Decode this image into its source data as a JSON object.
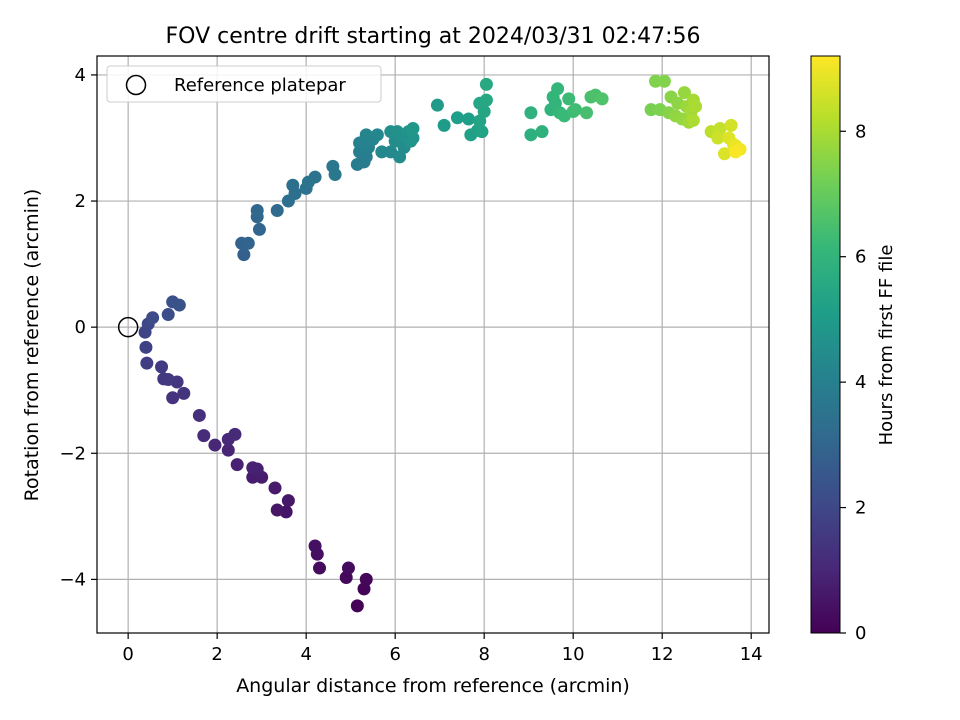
{
  "chart_data": {
    "type": "scatter",
    "title": "FOV centre drift starting at 2024/03/31 02:47:56",
    "xlabel": "Angular distance from reference (arcmin)",
    "ylabel": "Rotation from reference (arcmin)",
    "xlim": [
      -0.7,
      14.4
    ],
    "ylim": [
      -4.85,
      4.3
    ],
    "xticks": [
      0,
      2,
      4,
      6,
      8,
      10,
      12,
      14
    ],
    "yticks": [
      -4,
      -2,
      0,
      2,
      4
    ],
    "xtick_labels": [
      "0",
      "2",
      "4",
      "6",
      "8",
      "10",
      "12",
      "14"
    ],
    "ytick_labels": [
      "−4",
      "−2",
      "0",
      "2",
      "4"
    ],
    "grid": true,
    "legend": {
      "placement": "top-left",
      "entries": [
        "Reference platepar"
      ]
    },
    "reference_point": {
      "name": "Reference platepar",
      "x": 0,
      "y": 0,
      "marker": "open-circle"
    },
    "colorbar": {
      "label": "Hours from first FF file",
      "colormap": "viridis",
      "range": [
        0,
        9.2
      ],
      "ticks": [
        0,
        2,
        4,
        6,
        8
      ],
      "tick_labels": [
        "0",
        "2",
        "4",
        "6",
        "8"
      ],
      "colors": [
        "#440154",
        "#482878",
        "#3e4989",
        "#31688e",
        "#26828e",
        "#1f9e89",
        "#35b779",
        "#6ece58",
        "#b5de2b",
        "#fde725"
      ]
    },
    "points": [
      {
        "x": 5.15,
        "y": -4.42,
        "h": 0.05
      },
      {
        "x": 5.3,
        "y": -4.15,
        "h": 0.1
      },
      {
        "x": 5.35,
        "y": -4.0,
        "h": 0.15
      },
      {
        "x": 4.9,
        "y": -3.97,
        "h": 0.2
      },
      {
        "x": 4.95,
        "y": -3.82,
        "h": 0.25
      },
      {
        "x": 4.3,
        "y": -3.82,
        "h": 0.3
      },
      {
        "x": 4.25,
        "y": -3.6,
        "h": 0.35
      },
      {
        "x": 4.2,
        "y": -3.47,
        "h": 0.4
      },
      {
        "x": 3.55,
        "y": -2.93,
        "h": 0.5
      },
      {
        "x": 3.35,
        "y": -2.9,
        "h": 0.55
      },
      {
        "x": 3.6,
        "y": -2.75,
        "h": 0.6
      },
      {
        "x": 3.3,
        "y": -2.55,
        "h": 0.65
      },
      {
        "x": 2.8,
        "y": -2.38,
        "h": 0.7
      },
      {
        "x": 3.0,
        "y": -2.38,
        "h": 0.75
      },
      {
        "x": 2.9,
        "y": -2.25,
        "h": 0.8
      },
      {
        "x": 2.8,
        "y": -2.23,
        "h": 0.85
      },
      {
        "x": 2.45,
        "y": -2.18,
        "h": 0.9
      },
      {
        "x": 2.25,
        "y": -1.95,
        "h": 0.95
      },
      {
        "x": 1.95,
        "y": -1.87,
        "h": 1.0
      },
      {
        "x": 2.25,
        "y": -1.78,
        "h": 1.05
      },
      {
        "x": 2.4,
        "y": -1.7,
        "h": 1.1
      },
      {
        "x": 1.7,
        "y": -1.72,
        "h": 1.15
      },
      {
        "x": 1.6,
        "y": -1.4,
        "h": 1.25
      },
      {
        "x": 1.0,
        "y": -1.12,
        "h": 1.35
      },
      {
        "x": 1.25,
        "y": -1.05,
        "h": 1.4
      },
      {
        "x": 1.1,
        "y": -0.87,
        "h": 1.45
      },
      {
        "x": 0.8,
        "y": -0.82,
        "h": 1.5
      },
      {
        "x": 0.9,
        "y": -0.83,
        "h": 1.55
      },
      {
        "x": 0.75,
        "y": -0.63,
        "h": 1.6
      },
      {
        "x": 0.42,
        "y": -0.57,
        "h": 1.7
      },
      {
        "x": 0.4,
        "y": -0.32,
        "h": 1.8
      },
      {
        "x": 0.38,
        "y": -0.08,
        "h": 1.9
      },
      {
        "x": 0.45,
        "y": 0.05,
        "h": 2.0
      },
      {
        "x": 0.55,
        "y": 0.15,
        "h": 2.1
      },
      {
        "x": 0.9,
        "y": 0.2,
        "h": 2.2
      },
      {
        "x": 1.0,
        "y": 0.4,
        "h": 2.3
      },
      {
        "x": 1.15,
        "y": 0.35,
        "h": 2.35
      },
      {
        "x": 2.6,
        "y": 1.15,
        "h": 2.8
      },
      {
        "x": 2.55,
        "y": 1.33,
        "h": 2.9
      },
      {
        "x": 2.7,
        "y": 1.33,
        "h": 2.95
      },
      {
        "x": 2.95,
        "y": 1.55,
        "h": 3.0
      },
      {
        "x": 2.9,
        "y": 1.75,
        "h": 3.05
      },
      {
        "x": 2.9,
        "y": 1.85,
        "h": 3.1
      },
      {
        "x": 3.35,
        "y": 1.85,
        "h": 3.2
      },
      {
        "x": 3.6,
        "y": 2.0,
        "h": 3.3
      },
      {
        "x": 3.75,
        "y": 2.12,
        "h": 3.35
      },
      {
        "x": 3.7,
        "y": 2.25,
        "h": 3.4
      },
      {
        "x": 4.0,
        "y": 2.2,
        "h": 3.45
      },
      {
        "x": 4.05,
        "y": 2.3,
        "h": 3.5
      },
      {
        "x": 4.2,
        "y": 2.38,
        "h": 3.55
      },
      {
        "x": 4.6,
        "y": 2.55,
        "h": 3.65
      },
      {
        "x": 4.65,
        "y": 2.42,
        "h": 3.7
      },
      {
        "x": 5.15,
        "y": 2.58,
        "h": 3.8
      },
      {
        "x": 5.3,
        "y": 2.62,
        "h": 3.85
      },
      {
        "x": 5.35,
        "y": 2.7,
        "h": 3.9
      },
      {
        "x": 5.2,
        "y": 2.78,
        "h": 3.95
      },
      {
        "x": 5.4,
        "y": 2.85,
        "h": 4.0
      },
      {
        "x": 5.2,
        "y": 2.92,
        "h": 4.05
      },
      {
        "x": 5.3,
        "y": 2.95,
        "h": 4.1
      },
      {
        "x": 5.5,
        "y": 2.98,
        "h": 4.15
      },
      {
        "x": 5.35,
        "y": 3.05,
        "h": 4.2
      },
      {
        "x": 5.6,
        "y": 3.05,
        "h": 4.25
      },
      {
        "x": 5.9,
        "y": 2.78,
        "h": 4.3
      },
      {
        "x": 5.7,
        "y": 2.78,
        "h": 4.35
      },
      {
        "x": 6.1,
        "y": 2.7,
        "h": 4.4
      },
      {
        "x": 6.2,
        "y": 2.85,
        "h": 4.45
      },
      {
        "x": 6.0,
        "y": 2.95,
        "h": 4.5
      },
      {
        "x": 5.9,
        "y": 3.1,
        "h": 4.55
      },
      {
        "x": 6.05,
        "y": 3.1,
        "h": 4.6
      },
      {
        "x": 6.15,
        "y": 3.05,
        "h": 4.65
      },
      {
        "x": 6.3,
        "y": 3.1,
        "h": 4.7
      },
      {
        "x": 6.35,
        "y": 2.95,
        "h": 4.75
      },
      {
        "x": 6.4,
        "y": 3.0,
        "h": 4.8
      },
      {
        "x": 6.4,
        "y": 3.15,
        "h": 4.85
      },
      {
        "x": 6.95,
        "y": 3.52,
        "h": 5.0
      },
      {
        "x": 7.1,
        "y": 3.2,
        "h": 5.05
      },
      {
        "x": 7.4,
        "y": 3.32,
        "h": 5.1
      },
      {
        "x": 7.65,
        "y": 3.3,
        "h": 5.15
      },
      {
        "x": 7.7,
        "y": 3.05,
        "h": 5.2
      },
      {
        "x": 7.85,
        "y": 3.12,
        "h": 5.25
      },
      {
        "x": 7.95,
        "y": 3.1,
        "h": 5.3
      },
      {
        "x": 7.9,
        "y": 3.27,
        "h": 5.35
      },
      {
        "x": 8.0,
        "y": 3.42,
        "h": 5.4
      },
      {
        "x": 7.9,
        "y": 3.55,
        "h": 5.45
      },
      {
        "x": 8.05,
        "y": 3.6,
        "h": 5.5
      },
      {
        "x": 8.05,
        "y": 3.85,
        "h": 5.55
      },
      {
        "x": 9.05,
        "y": 3.05,
        "h": 5.8
      },
      {
        "x": 9.3,
        "y": 3.1,
        "h": 5.85
      },
      {
        "x": 9.05,
        "y": 3.4,
        "h": 5.9
      },
      {
        "x": 9.5,
        "y": 3.45,
        "h": 5.95
      },
      {
        "x": 9.6,
        "y": 3.55,
        "h": 6.0
      },
      {
        "x": 9.55,
        "y": 3.65,
        "h": 6.05
      },
      {
        "x": 9.65,
        "y": 3.78,
        "h": 6.1
      },
      {
        "x": 9.7,
        "y": 3.4,
        "h": 6.15
      },
      {
        "x": 9.8,
        "y": 3.35,
        "h": 6.2
      },
      {
        "x": 9.9,
        "y": 3.62,
        "h": 6.25
      },
      {
        "x": 10.0,
        "y": 3.42,
        "h": 6.3
      },
      {
        "x": 10.05,
        "y": 3.45,
        "h": 6.35
      },
      {
        "x": 10.3,
        "y": 3.4,
        "h": 6.45
      },
      {
        "x": 10.4,
        "y": 3.65,
        "h": 6.5
      },
      {
        "x": 10.5,
        "y": 3.68,
        "h": 6.55
      },
      {
        "x": 10.65,
        "y": 3.62,
        "h": 6.6
      },
      {
        "x": 11.75,
        "y": 3.45,
        "h": 7.3
      },
      {
        "x": 11.95,
        "y": 3.45,
        "h": 7.35
      },
      {
        "x": 11.85,
        "y": 3.9,
        "h": 7.4
      },
      {
        "x": 12.05,
        "y": 3.9,
        "h": 7.45
      },
      {
        "x": 12.15,
        "y": 3.4,
        "h": 7.5
      },
      {
        "x": 12.2,
        "y": 3.65,
        "h": 7.55
      },
      {
        "x": 12.35,
        "y": 3.55,
        "h": 7.6
      },
      {
        "x": 12.3,
        "y": 3.35,
        "h": 7.65
      },
      {
        "x": 12.45,
        "y": 3.3,
        "h": 7.7
      },
      {
        "x": 12.5,
        "y": 3.72,
        "h": 7.75
      },
      {
        "x": 12.55,
        "y": 3.5,
        "h": 7.8
      },
      {
        "x": 12.6,
        "y": 3.25,
        "h": 7.85
      },
      {
        "x": 12.65,
        "y": 3.42,
        "h": 7.9
      },
      {
        "x": 12.7,
        "y": 3.6,
        "h": 7.95
      },
      {
        "x": 12.75,
        "y": 3.5,
        "h": 8.0
      },
      {
        "x": 12.7,
        "y": 3.28,
        "h": 8.05
      },
      {
        "x": 13.1,
        "y": 3.1,
        "h": 8.3
      },
      {
        "x": 13.3,
        "y": 3.15,
        "h": 8.4
      },
      {
        "x": 13.25,
        "y": 3.0,
        "h": 8.5
      },
      {
        "x": 13.55,
        "y": 3.2,
        "h": 8.6
      },
      {
        "x": 13.4,
        "y": 2.75,
        "h": 8.7
      },
      {
        "x": 13.5,
        "y": 3.0,
        "h": 8.75
      },
      {
        "x": 13.6,
        "y": 2.9,
        "h": 8.85
      },
      {
        "x": 13.65,
        "y": 2.88,
        "h": 8.95
      },
      {
        "x": 13.75,
        "y": 2.82,
        "h": 9.05
      },
      {
        "x": 13.65,
        "y": 2.78,
        "h": 9.15
      }
    ]
  }
}
